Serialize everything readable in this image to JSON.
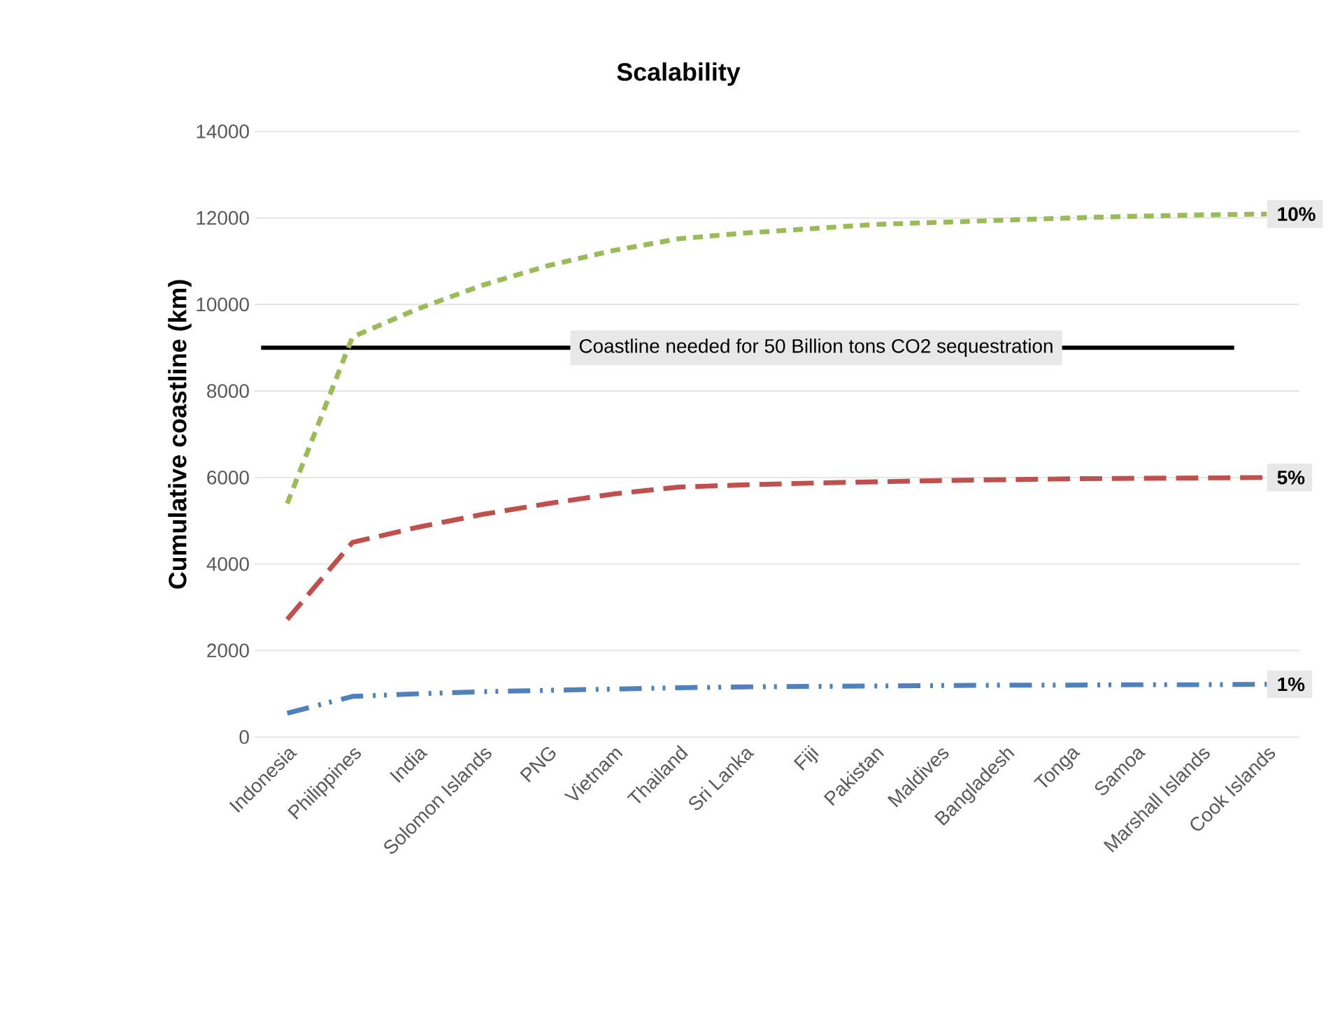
{
  "chart_data": {
    "type": "line",
    "title": "Scalability",
    "ylabel": "Cumulative coastline (km)",
    "categories": [
      "Indonesia",
      "Philippines",
      "India",
      "Solomon Islands",
      "PNG",
      "Vietnam",
      "Thailand",
      "Sri Lanka",
      "Fiji",
      "Pakistan",
      "Maldives",
      "Bangladesh",
      "Tonga",
      "Samoa",
      "Marshall Islands",
      "Cook Islands"
    ],
    "series": [
      {
        "name": "10%",
        "color": "#9bbb59",
        "line_style": "dashed",
        "values": [
          5400,
          9250,
          9900,
          10450,
          10900,
          11250,
          11520,
          11650,
          11750,
          11850,
          11900,
          11950,
          12000,
          12040,
          12070,
          12090
        ]
      },
      {
        "name": "5%",
        "color": "#c0504d",
        "line_style": "longdashed",
        "values": [
          2720,
          4500,
          4850,
          5150,
          5400,
          5620,
          5780,
          5830,
          5870,
          5900,
          5930,
          5950,
          5970,
          5980,
          5990,
          6000
        ]
      },
      {
        "name": "1%",
        "color": "#4f81bd",
        "line_style": "dashdotdot",
        "values": [
          550,
          940,
          1000,
          1050,
          1080,
          1110,
          1140,
          1160,
          1170,
          1180,
          1190,
          1200,
          1200,
          1210,
          1210,
          1220
        ]
      }
    ],
    "ylim": [
      0,
      14000
    ],
    "yticks": [
      0,
      2000,
      4000,
      6000,
      8000,
      10000,
      12000,
      14000
    ],
    "grid": "y",
    "marker": "none",
    "ref_lines": [
      {
        "axis": "y",
        "value": 9000,
        "label": "Coastline needed for 50 Billion tons CO2 sequestration",
        "color": "#000000"
      }
    ]
  }
}
